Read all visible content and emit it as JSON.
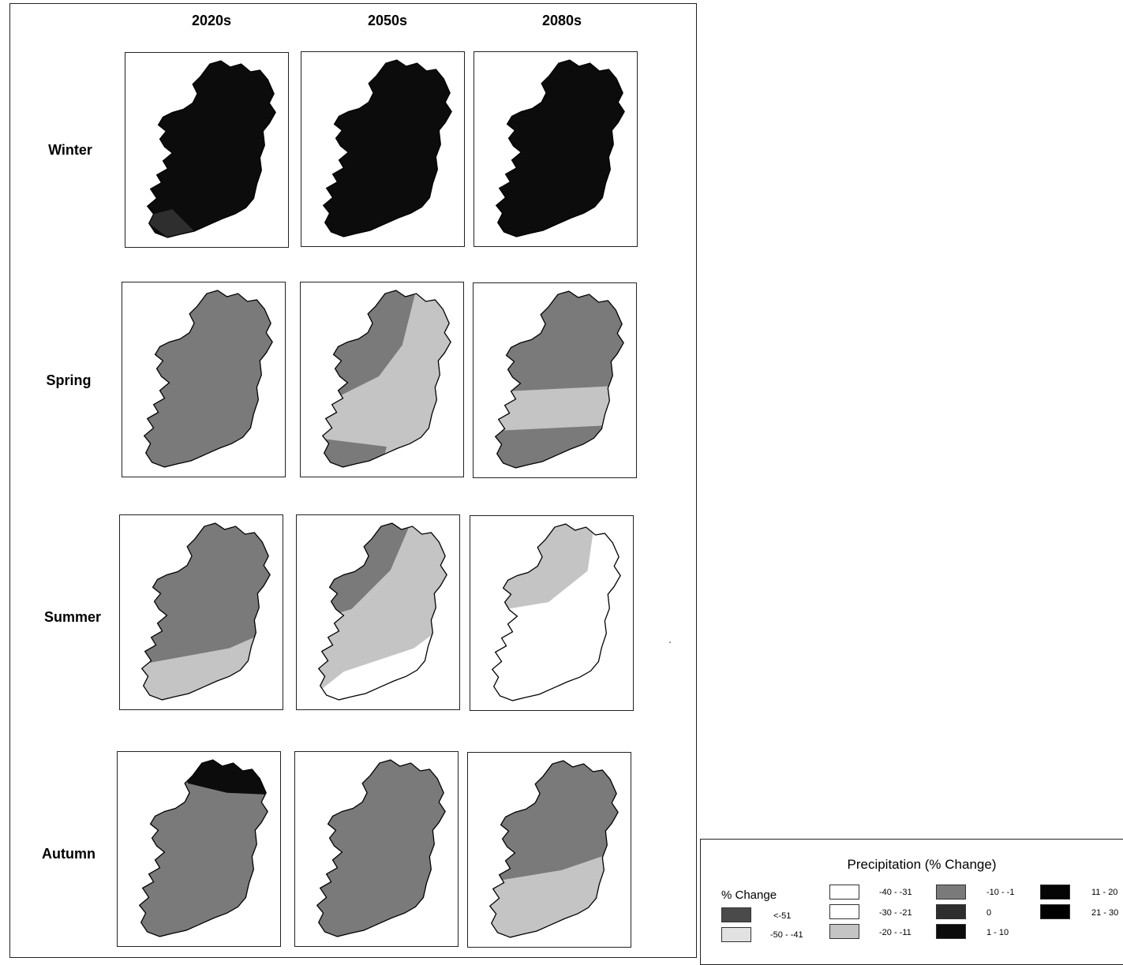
{
  "columns": [
    "2020s",
    "2050s",
    "2080s"
  ],
  "rows": [
    "Winter",
    "Spring",
    "Summer",
    "Autumn"
  ],
  "colors": {
    "lt_minus_51": "#4a4a4a",
    "m50_m41": "#e2e2e2",
    "m40_m31": "#ffffff",
    "m30_m21": "#ffffff",
    "m20_m11": "#c4c4c4",
    "m10_m1": "#7a7a7a",
    "zero": "#2e2e2e",
    "p1_10": "#0c0c0c",
    "p11_20": "#050505",
    "p21_30": "#000000"
  },
  "maps": {
    "winter_2020s": "Mostly 1 - 10 % increase; south-west slightly lower",
    "winter_2050s": "1 - 10 % increase",
    "winter_2080s": "1 - 10 % increase",
    "spring_2020s": "-10 - -1",
    "spring_2050s": "north-west -10 - -1; south-east -20 - -11",
    "spring_2080s": "north -10 - -1; middle band -20 - -11",
    "summer_2020s": "-10 - -1; south -20 - -11",
    "summer_2050s": "north-west -10 - -1; centre -20 - -11; south-east -30 - -21",
    "summer_2080s": "north-west -20 - -11; remainder -30 - -21",
    "autumn_2020s": "north 1 - 10; remainder -10 - -1",
    "autumn_2050s": "-10 - -1",
    "autumn_2080s": "north -10 - -1; south -20 - -11"
  },
  "legend": {
    "title": "Precipitation (% Change)",
    "subtitle": "% Change",
    "items": [
      {
        "label": "<-51",
        "color": "#4a4a4a"
      },
      {
        "label": "-50 - -41",
        "color": "#e2e2e2"
      },
      {
        "label": "-40 - -31",
        "color": "#ffffff"
      },
      {
        "label": "-30 - -21",
        "color": "#ffffff"
      },
      {
        "label": "-20 - -11",
        "color": "#c4c4c4"
      },
      {
        "label": "-10 - -1",
        "color": "#7a7a7a"
      },
      {
        "label": "0",
        "color": "#2e2e2e"
      },
      {
        "label": "1 - 10",
        "color": "#0c0c0c"
      },
      {
        "label": "11 - 20",
        "color": "#050505"
      },
      {
        "label": "21 - 30",
        "color": "#000000"
      }
    ]
  }
}
